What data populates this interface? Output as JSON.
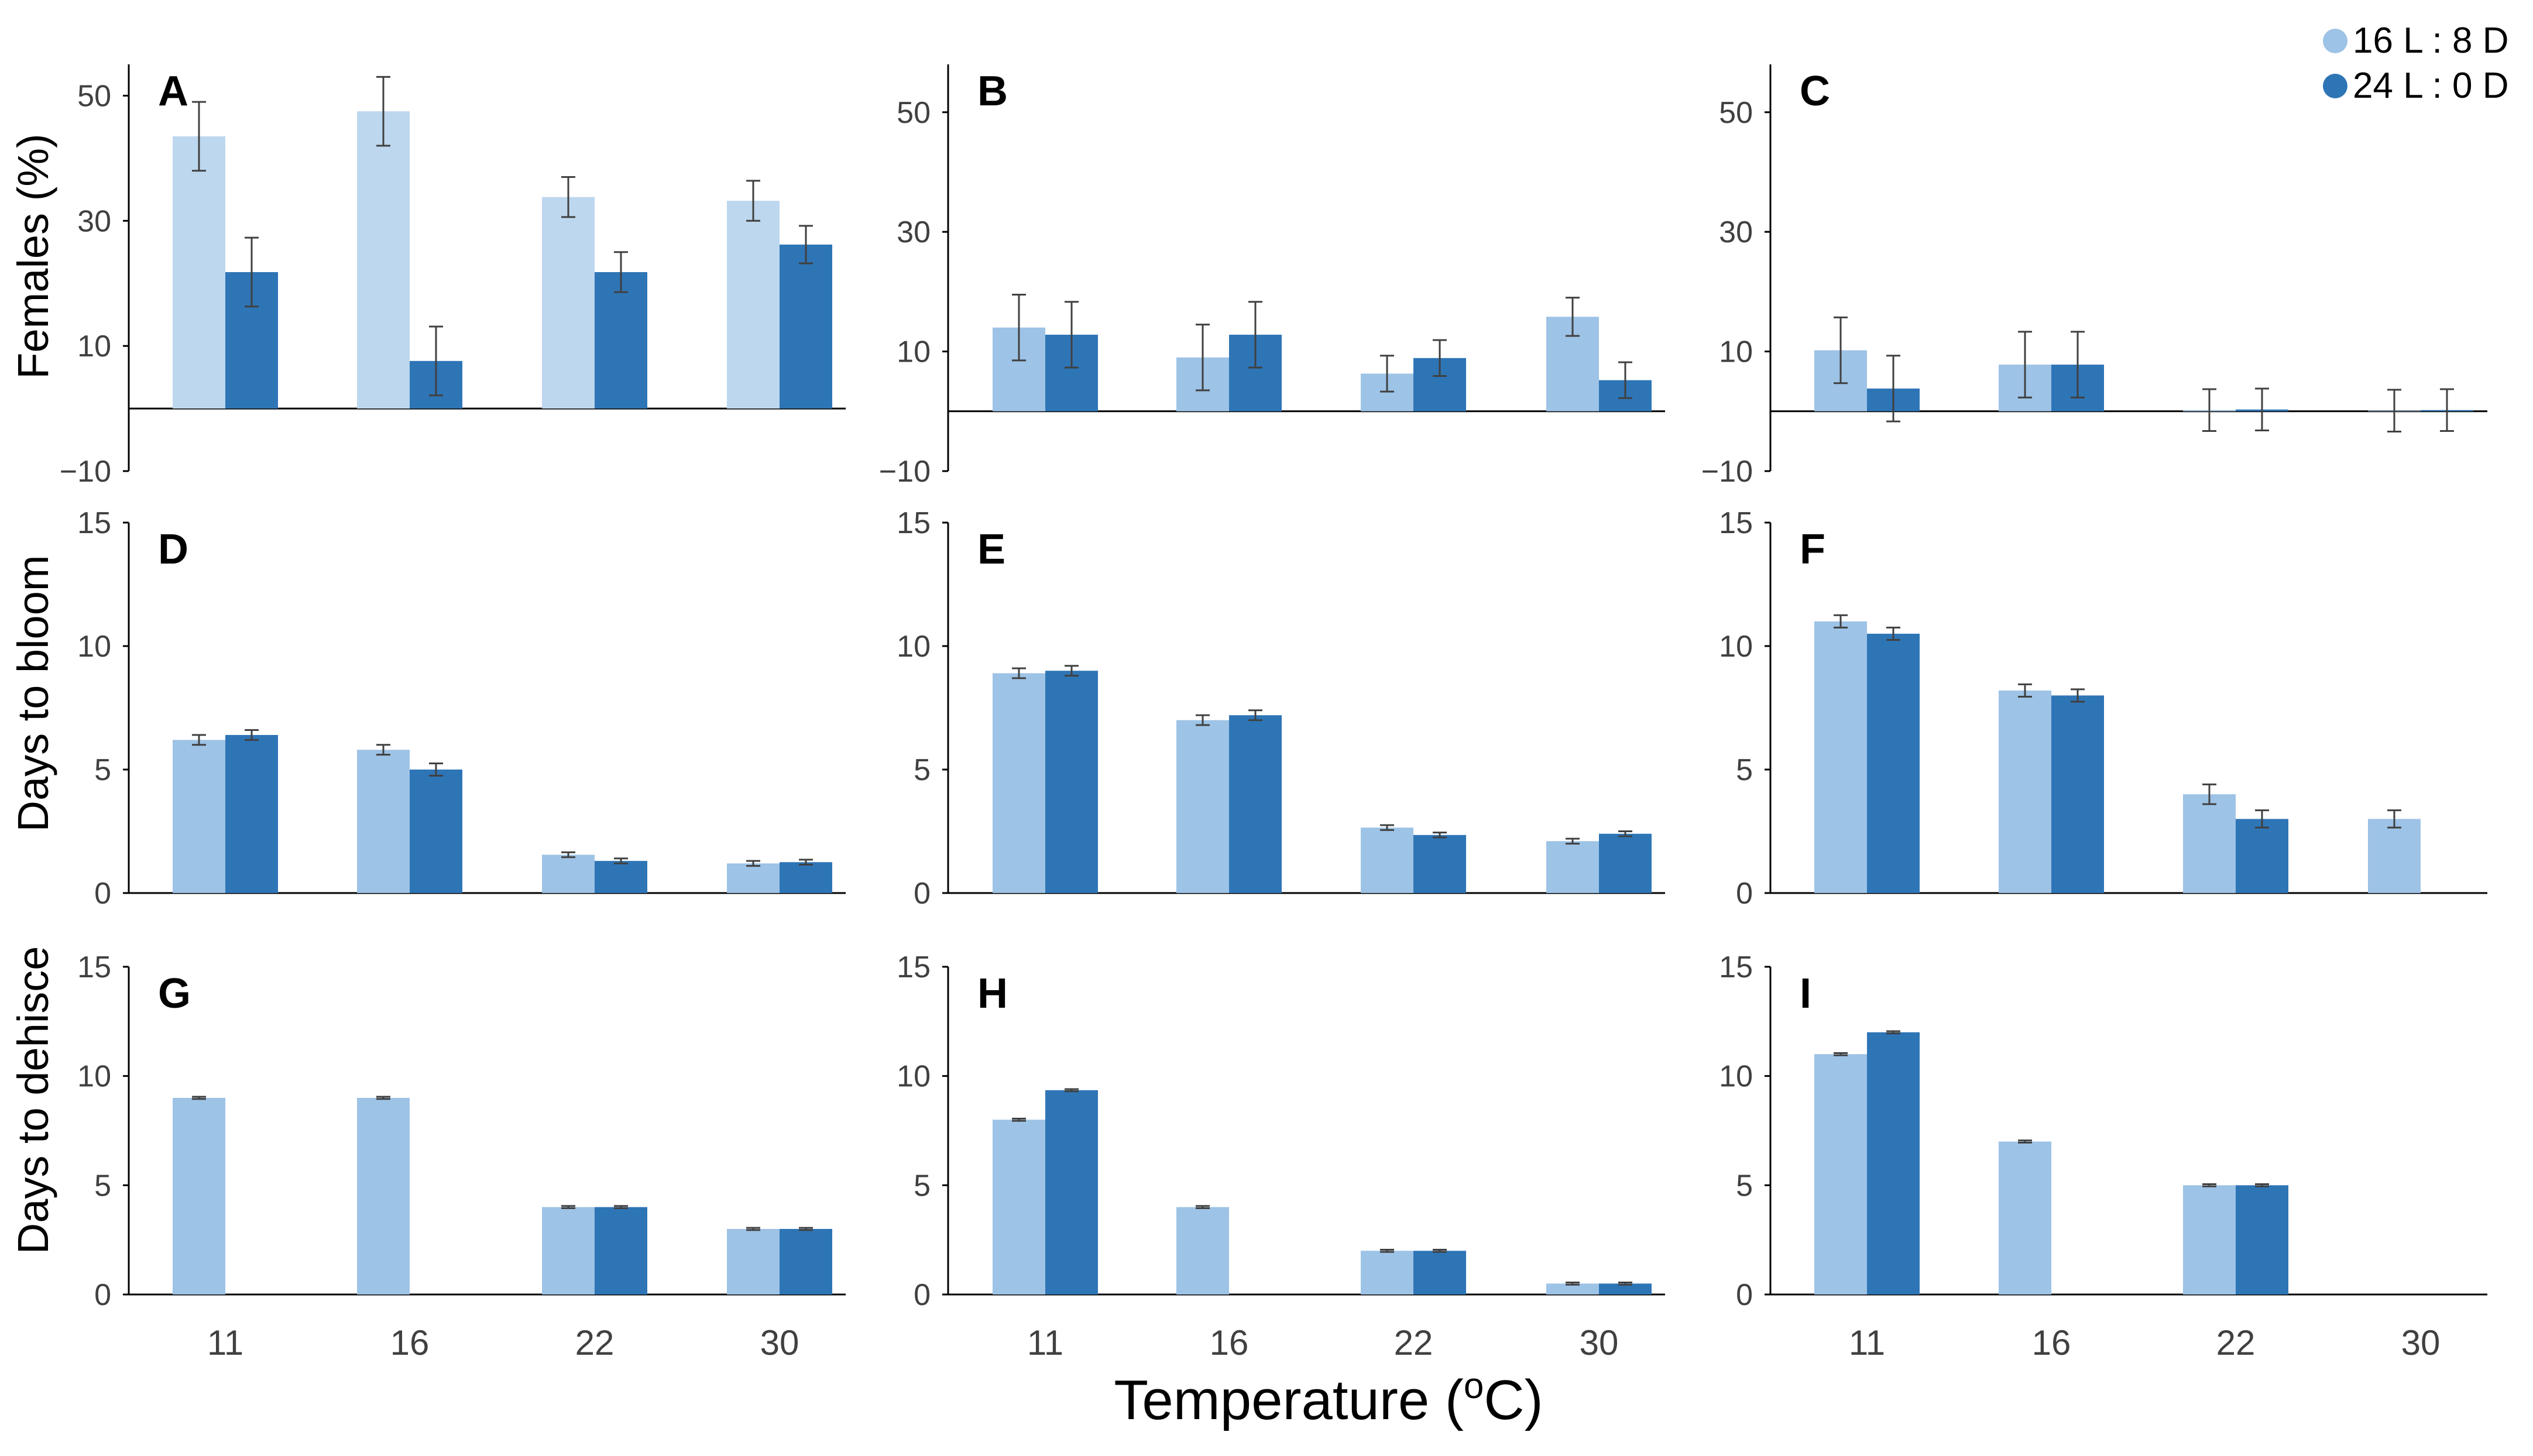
{
  "figure": {
    "xlabel_main": "Temperature (",
    "xlabel_super": "o",
    "xlabel_end": "C)",
    "legend": [
      {
        "label": "16 L : 8 D",
        "color": "#9dc3e6"
      },
      {
        "label": "24 L : 0 D",
        "color": "#2e75b6"
      }
    ],
    "row_ylabels": [
      "Females (%)",
      "Days to bloom",
      "Days to dehisce"
    ]
  },
  "chart_data": [
    {
      "panel": "A",
      "type": "bar",
      "categories": [
        "11",
        "16",
        "22",
        "30"
      ],
      "ylim": [
        -10,
        55
      ],
      "yticks": [
        -10,
        10,
        30,
        50
      ],
      "ylabel": "Females (%)",
      "light_color": "#bdd7ee",
      "series": [
        {
          "name": "16 L : 8 D",
          "values": [
            43.5,
            47.5,
            33.8,
            33.2
          ],
          "err": [
            5.5,
            5.5,
            3.2,
            3.2
          ]
        },
        {
          "name": "24 L : 0 D",
          "values": [
            21.8,
            7.6,
            21.8,
            26.2
          ],
          "err": [
            5.5,
            5.5,
            3.2,
            3.0
          ]
        }
      ]
    },
    {
      "panel": "B",
      "type": "bar",
      "categories": [
        "11",
        "16",
        "22",
        "30"
      ],
      "ylim": [
        -10,
        58
      ],
      "yticks": [
        -10,
        10,
        30,
        50
      ],
      "ylabel": "",
      "series": [
        {
          "name": "16 L : 8 D",
          "values": [
            14.0,
            9.0,
            6.3,
            15.8
          ],
          "err": [
            5.5,
            5.5,
            3.0,
            3.2
          ]
        },
        {
          "name": "24 L : 0 D",
          "values": [
            12.8,
            12.8,
            8.9,
            5.2
          ],
          "err": [
            5.5,
            5.5,
            3.0,
            3.0
          ]
        }
      ]
    },
    {
      "panel": "C",
      "type": "bar",
      "categories": [
        "11",
        "16",
        "22",
        "30"
      ],
      "ylim": [
        -10,
        58
      ],
      "yticks": [
        -10,
        10,
        30,
        50
      ],
      "ylabel": "",
      "series": [
        {
          "name": "16 L : 8 D",
          "values": [
            10.2,
            7.8,
            0.2,
            0.1
          ],
          "err": [
            5.5,
            5.5,
            3.5,
            3.5
          ]
        },
        {
          "name": "24 L : 0 D",
          "values": [
            3.8,
            7.8,
            0.3,
            0.2
          ],
          "err": [
            5.5,
            5.5,
            3.5,
            3.5
          ]
        }
      ]
    },
    {
      "panel": "D",
      "type": "bar",
      "categories": [
        "11",
        "16",
        "22",
        "30"
      ],
      "ylim": [
        0,
        15
      ],
      "yticks": [
        0,
        5,
        10,
        15
      ],
      "ylabel": "Days to bloom",
      "series": [
        {
          "name": "16 L : 8 D",
          "values": [
            6.2,
            5.8,
            1.55,
            1.2
          ],
          "err": [
            0.2,
            0.2,
            0.1,
            0.1
          ]
        },
        {
          "name": "24 L : 0 D",
          "values": [
            6.4,
            5.0,
            1.3,
            1.25
          ],
          "err": [
            0.2,
            0.25,
            0.1,
            0.1
          ]
        }
      ]
    },
    {
      "panel": "E",
      "type": "bar",
      "categories": [
        "11",
        "16",
        "22",
        "30"
      ],
      "ylim": [
        0,
        15
      ],
      "yticks": [
        0,
        5,
        10,
        15
      ],
      "ylabel": "",
      "series": [
        {
          "name": "16 L : 8 D",
          "values": [
            8.9,
            7.0,
            2.65,
            2.1
          ],
          "err": [
            0.2,
            0.2,
            0.1,
            0.1
          ]
        },
        {
          "name": "24 L : 0 D",
          "values": [
            9.0,
            7.2,
            2.35,
            2.4
          ],
          "err": [
            0.2,
            0.2,
            0.1,
            0.1
          ]
        }
      ]
    },
    {
      "panel": "F",
      "type": "bar",
      "categories": [
        "11",
        "16",
        "22",
        "30"
      ],
      "ylim": [
        0,
        15
      ],
      "yticks": [
        0,
        5,
        10,
        15
      ],
      "ylabel": "",
      "series": [
        {
          "name": "16 L : 8 D",
          "values": [
            11.0,
            8.2,
            4.0,
            3.0
          ],
          "err": [
            0.25,
            0.25,
            0.4,
            0.35
          ]
        },
        {
          "name": "24 L : 0 D",
          "values": [
            10.5,
            8.0,
            3.0,
            0
          ],
          "err": [
            0.25,
            0.25,
            0.35,
            0
          ]
        }
      ]
    },
    {
      "panel": "G",
      "type": "bar",
      "categories": [
        "11",
        "16",
        "22",
        "30"
      ],
      "ylim": [
        0,
        15
      ],
      "yticks": [
        0,
        5,
        10,
        15
      ],
      "ylabel": "Days to dehisce",
      "series": [
        {
          "name": "16 L : 8 D",
          "values": [
            9.0,
            9.0,
            4.0,
            3.0
          ],
          "err": [
            0.05,
            0.05,
            0.05,
            0.05
          ]
        },
        {
          "name": "24 L : 0 D",
          "values": [
            0,
            0,
            4.0,
            3.0
          ],
          "err": [
            0,
            0,
            0.05,
            0.05
          ]
        }
      ]
    },
    {
      "panel": "H",
      "type": "bar",
      "categories": [
        "11",
        "16",
        "22",
        "30"
      ],
      "ylim": [
        0,
        15
      ],
      "yticks": [
        0,
        5,
        10,
        15
      ],
      "ylabel": "",
      "series": [
        {
          "name": "16 L : 8 D",
          "values": [
            8.0,
            4.0,
            2.0,
            0.5
          ],
          "err": [
            0.05,
            0.05,
            0.05,
            0.05
          ]
        },
        {
          "name": "24 L : 0 D",
          "values": [
            9.35,
            0,
            2.0,
            0.5
          ],
          "err": [
            0.05,
            0,
            0.05,
            0.05
          ]
        }
      ]
    },
    {
      "panel": "I",
      "type": "bar",
      "categories": [
        "11",
        "16",
        "22",
        "30"
      ],
      "ylim": [
        0,
        15
      ],
      "yticks": [
        0,
        5,
        10,
        15
      ],
      "ylabel": "",
      "series": [
        {
          "name": "16 L : 8 D",
          "values": [
            11.0,
            7.0,
            5.0,
            0
          ],
          "err": [
            0.05,
            0.05,
            0.05,
            0
          ]
        },
        {
          "name": "24 L : 0 D",
          "values": [
            12.0,
            0,
            5.0,
            0
          ],
          "err": [
            0.05,
            0,
            0.05,
            0
          ]
        }
      ]
    }
  ]
}
